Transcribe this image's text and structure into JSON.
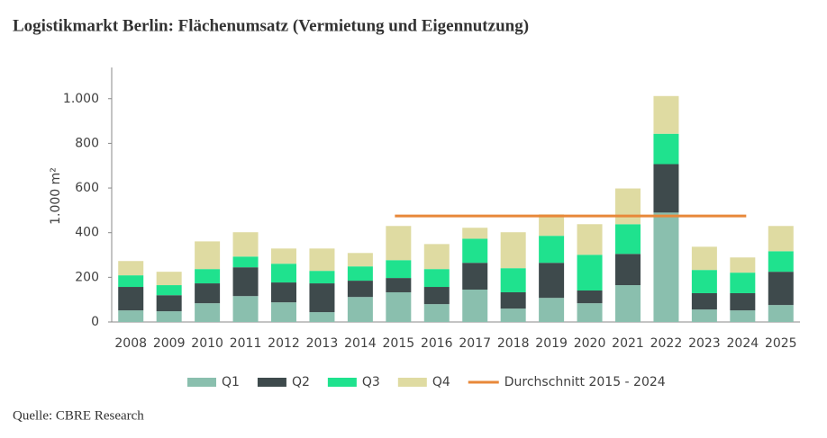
{
  "chart_data": {
    "type": "bar",
    "stacked": true,
    "title": "Logistikmarkt Berlin: Flächenumsatz (Vermietung und Eigennutzung)",
    "y_label": "1.000 m²",
    "source": "Quelle: CBRE Research",
    "categories": [
      "2008",
      "2009",
      "2010",
      "2011",
      "2012",
      "2013",
      "2014",
      "2015",
      "2016",
      "2017",
      "2018",
      "2019",
      "2020",
      "2021",
      "2022",
      "2023",
      "2024",
      "2025"
    ],
    "series": [
      {
        "name": "Q1",
        "color": "#8abfae",
        "values": [
          52,
          48,
          84,
          116,
          88,
          44,
          112,
          133,
          80,
          145,
          60,
          108,
          84,
          165,
          490,
          56,
          52,
          76
        ]
      },
      {
        "name": "Q2",
        "color": "#3e4a4c",
        "values": [
          105,
          72,
          89,
          129,
          89,
          129,
          73,
          64,
          77,
          120,
          73,
          157,
          57,
          140,
          217,
          73,
          77,
          149
        ]
      },
      {
        "name": "Q3",
        "color": "#1fe28e",
        "values": [
          52,
          45,
          64,
          48,
          84,
          56,
          64,
          80,
          80,
          108,
          108,
          121,
          160,
          133,
          136,
          104,
          92,
          92
        ]
      },
      {
        "name": "Q4",
        "color": "#dfdba2",
        "values": [
          64,
          60,
          124,
          109,
          68,
          100,
          60,
          153,
          112,
          49,
          161,
          96,
          137,
          160,
          169,
          104,
          68,
          113
        ]
      }
    ],
    "average": {
      "name": "Durchschnitt 2015 - 2024",
      "color": "#e8883a",
      "value": 475
    },
    "ylim": [
      0,
      1140
    ],
    "yticks": [
      0,
      200,
      400,
      600,
      800,
      {
        "value": 1000,
        "label": "1.000"
      }
    ],
    "grid": false
  }
}
